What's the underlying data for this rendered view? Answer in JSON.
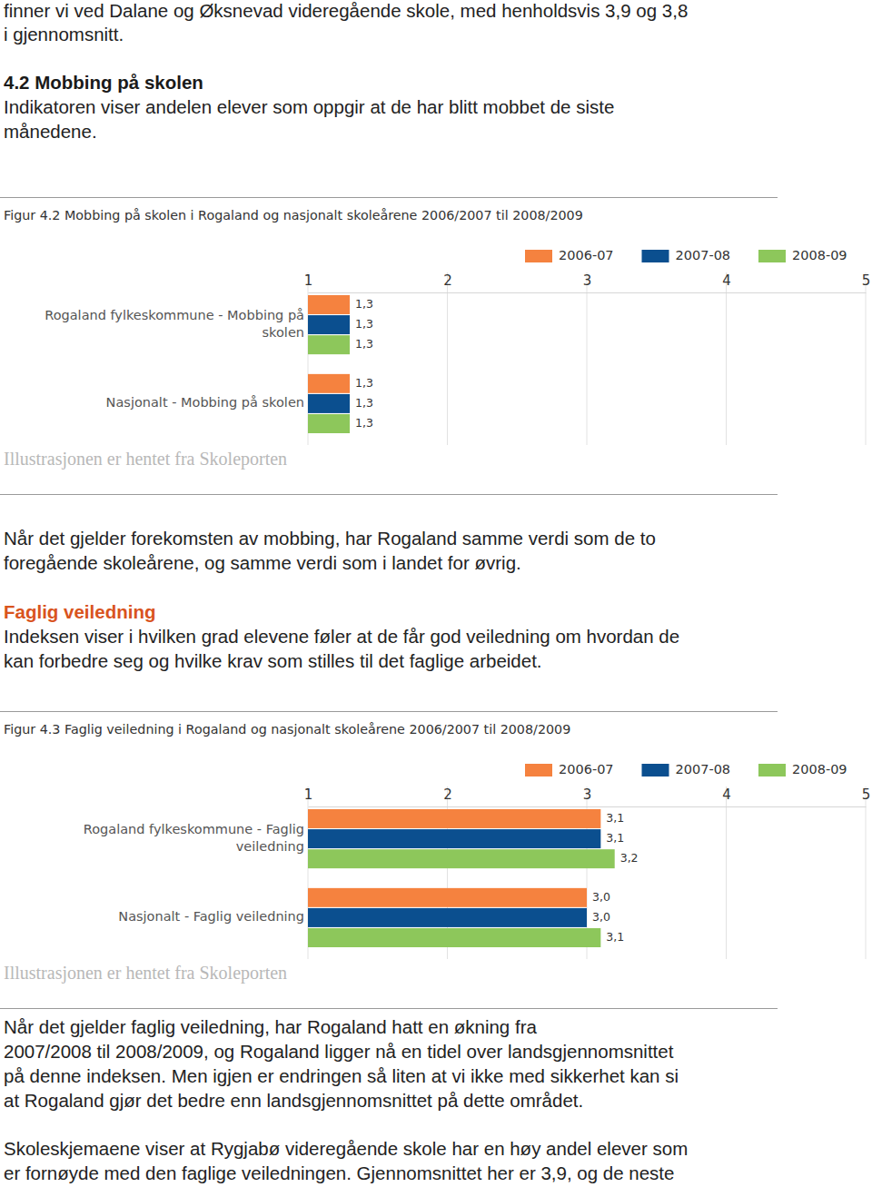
{
  "document": {
    "intro_lines": [
      "finner vi ved Dalane og Øksnevad videregående skole, med henholdsvis 3,9 og 3,8",
      "i gjennomsnitt."
    ],
    "heading_mobbing": "4.2 Mobbing på skolen",
    "mobbing_lines": [
      "Indikatoren viser andelen elever som oppgir at de har blitt mobbet de siste",
      "månedene."
    ],
    "mobbing_comment_lines": [
      "Når det gjelder forekomsten av mobbing, har Rogaland samme verdi som de to",
      "foregående skoleårene, og samme verdi som i landet for øvrig."
    ],
    "heading_veiledning": "Faglig veiledning",
    "veiledning_lines": [
      "Indeksen viser i hvilken grad elevene føler at de får god veiledning om hvordan de",
      "kan forbedre seg og hvilke krav som stilles til det faglige arbeidet."
    ],
    "veiledning_comment_lines": [
      "Når det gjelder faglig veiledning, har Rogaland hatt en økning fra",
      "2007/2008 til 2008/2009, og Rogaland ligger nå en tidel over landsgjennomsnittet",
      "på denne indeksen. Men igjen er endringen så liten at vi ikke med sikkerhet kan si",
      "at Rogaland gjør det bedre enn landsgjennomsnittet på dette området."
    ],
    "closing_lines": [
      "Skoleskjemaene viser at Rygjabø videregående skole har en høy andel elever som",
      "er fornøyde med den faglige veiledningen. Gjennomsnittet her er 3,9, og de neste"
    ]
  },
  "chart_data": [
    {
      "type": "bar",
      "orientation": "horizontal",
      "title": "Figur 4.2 Mobbing på skolen i Rogaland og nasjonalt skoleårene 2006/2007 til 2008/2009",
      "annotations": [
        "Illustrasjonen er hentet fra Skoleporten"
      ],
      "categories": [
        "Rogaland fylkeskommune - Mobbing på skolen",
        "Nasjonalt - Mobbing på skolen"
      ],
      "series": [
        {
          "name": "2006-07",
          "color": "#f5823f",
          "values": [
            1.3,
            1.3
          ],
          "value_labels": [
            "1,3",
            "1,3"
          ]
        },
        {
          "name": "2007-08",
          "color": "#0b4f8f",
          "values": [
            1.3,
            1.3
          ],
          "value_labels": [
            "1,3",
            "1,3"
          ]
        },
        {
          "name": "2008-09",
          "color": "#8dc75b",
          "values": [
            1.3,
            1.3
          ],
          "value_labels": [
            "1,3",
            "1,3"
          ]
        }
      ],
      "xlim": [
        1,
        5
      ],
      "xticks": [
        1,
        2,
        3,
        4,
        5
      ],
      "grid": true,
      "legend": "top-right",
      "data_labels": true
    },
    {
      "type": "bar",
      "orientation": "horizontal",
      "title": "Figur 4.3 Faglig veiledning i Rogaland og nasjonalt skoleårene 2006/2007 til 2008/2009",
      "annotations": [
        "Illustrasjonen er hentet fra Skoleporten"
      ],
      "categories": [
        "Rogaland fylkeskommune - Faglig veiledning",
        "Nasjonalt - Faglig veiledning"
      ],
      "series": [
        {
          "name": "2006-07",
          "color": "#f5823f",
          "values": [
            3.1,
            3.0
          ],
          "value_labels": [
            "3,1",
            "3,0"
          ]
        },
        {
          "name": "2007-08",
          "color": "#0b4f8f",
          "values": [
            3.1,
            3.0
          ],
          "value_labels": [
            "3,1",
            "3,0"
          ]
        },
        {
          "name": "2008-09",
          "color": "#8dc75b",
          "values": [
            3.2,
            3.1
          ],
          "value_labels": [
            "3,2",
            "3,1"
          ]
        }
      ],
      "xlim": [
        1,
        5
      ],
      "xticks": [
        1,
        2,
        3,
        4,
        5
      ],
      "grid": true,
      "legend": "top-right",
      "data_labels": true
    }
  ]
}
